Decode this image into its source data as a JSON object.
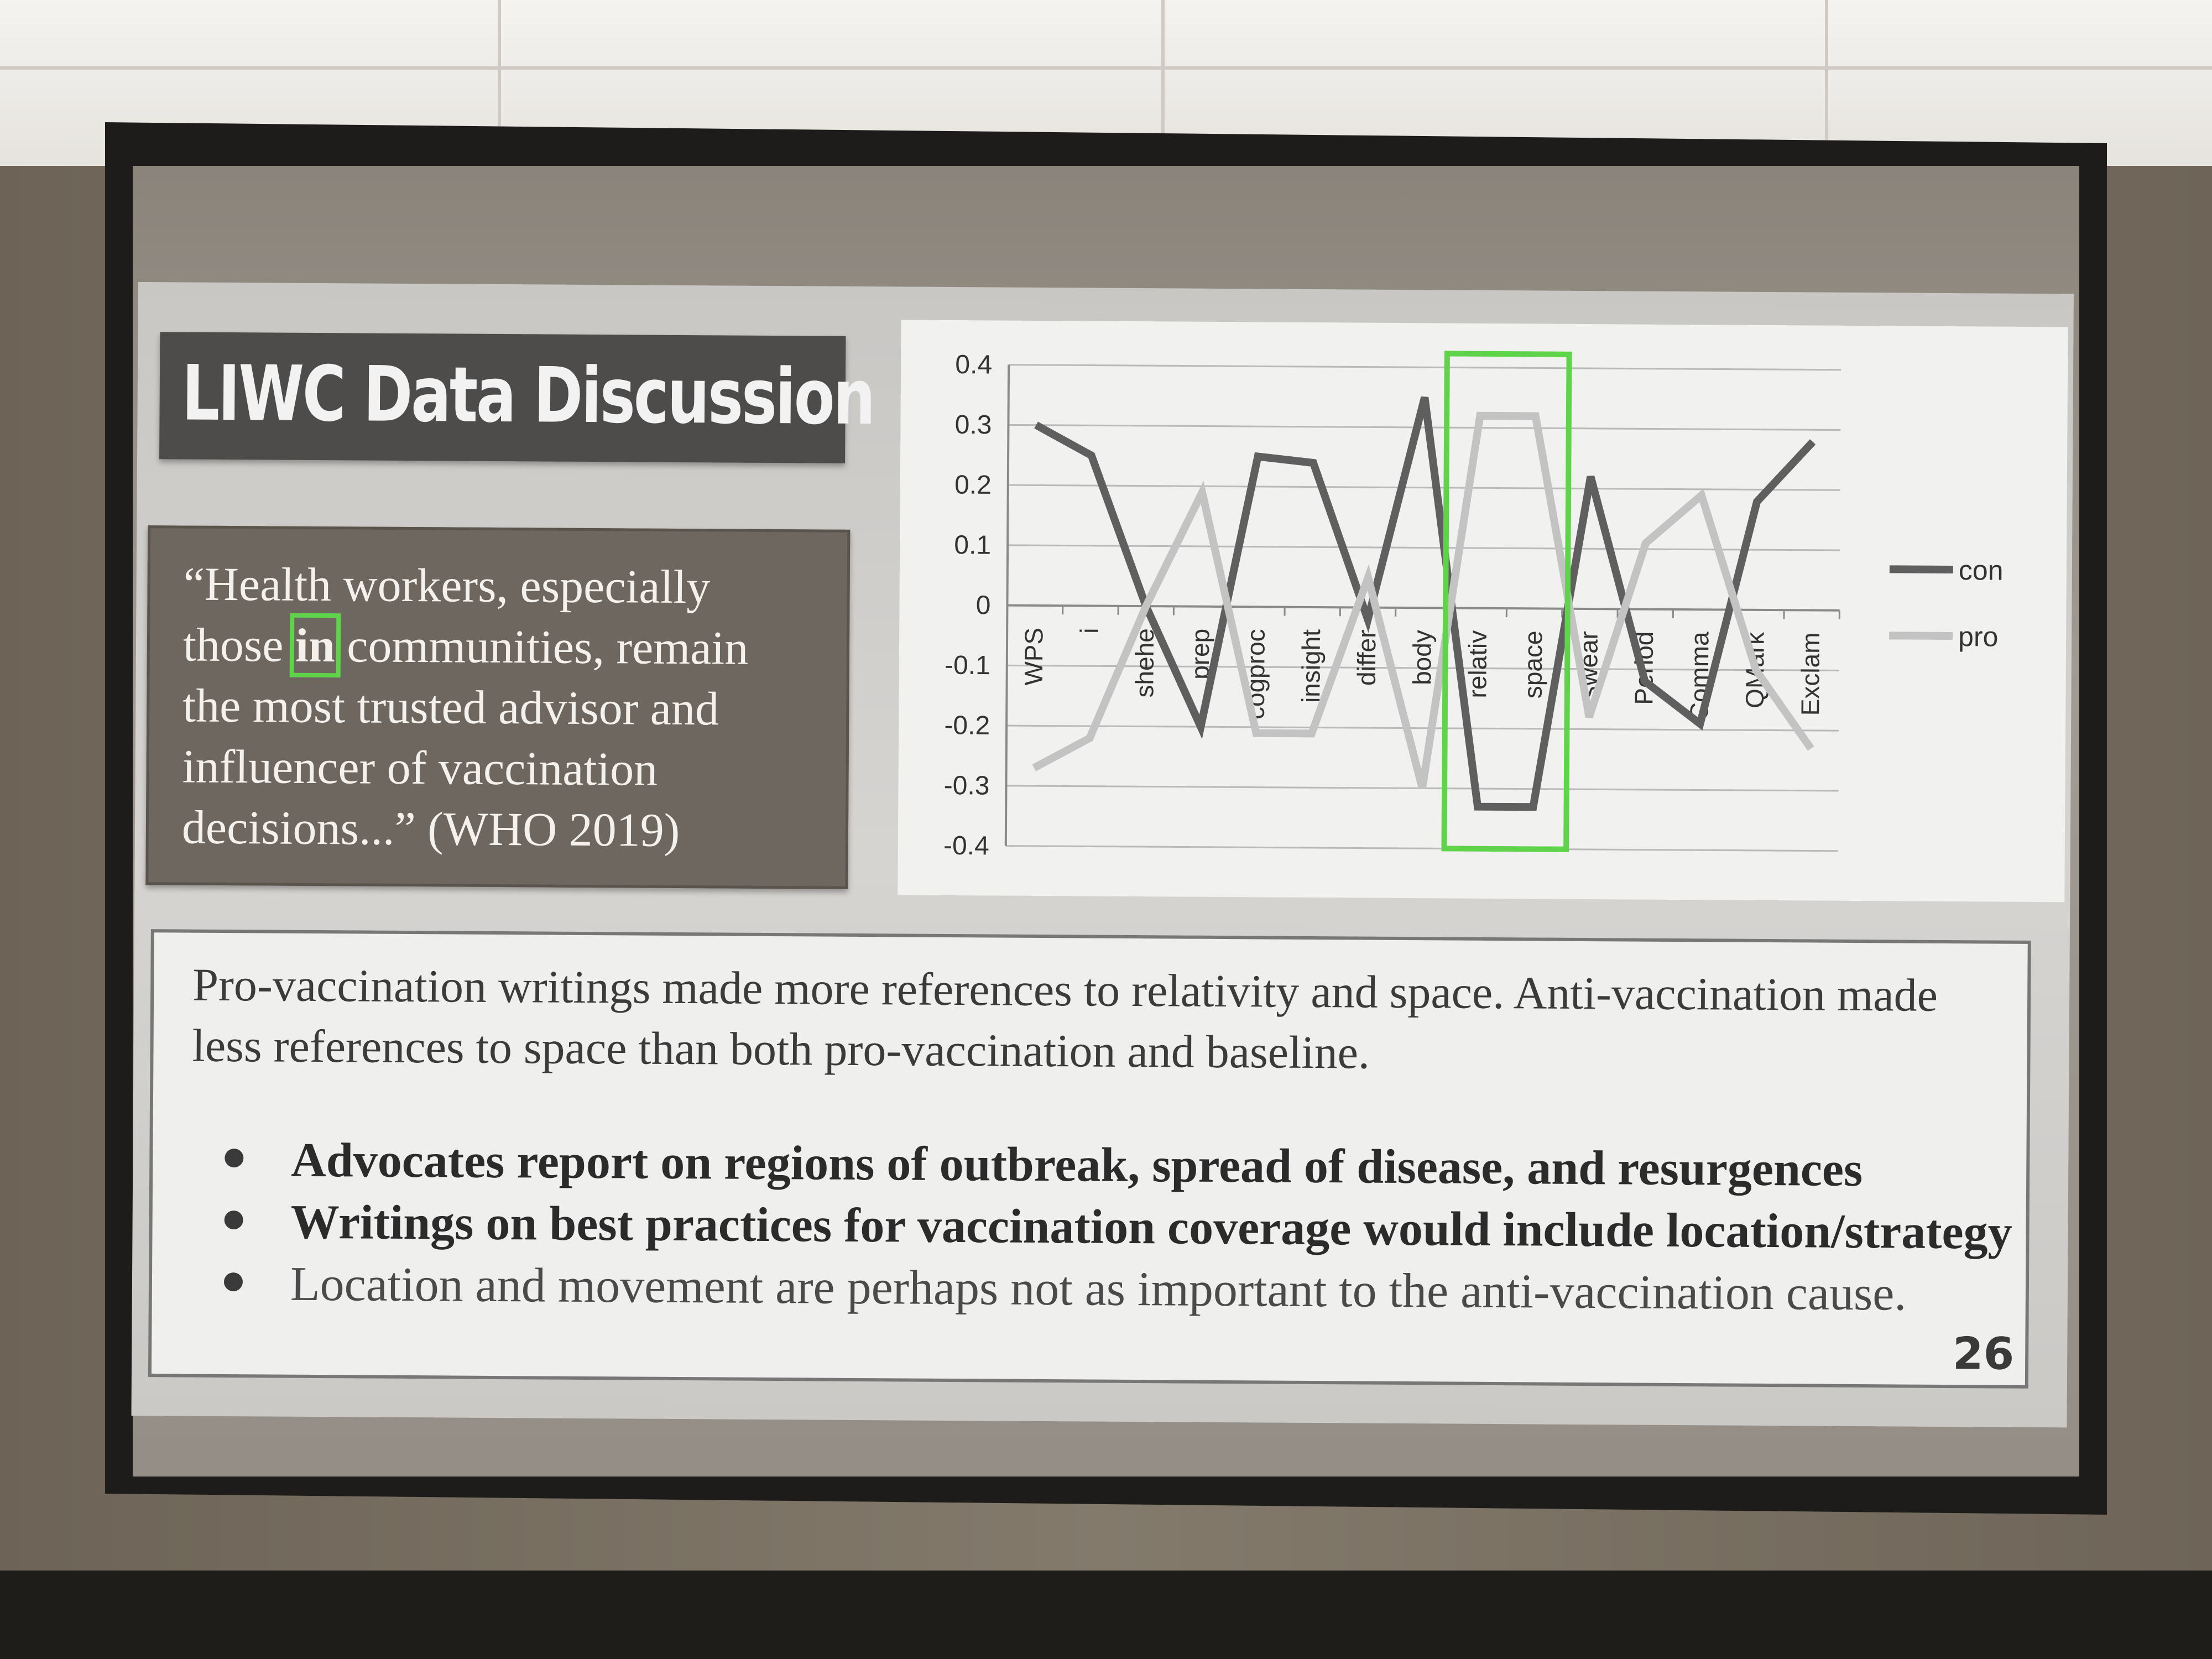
{
  "slide": {
    "title": "LIWC Data Discussion",
    "quote": {
      "line1": "“Health workers, especially",
      "line2_before": "those ",
      "line2_highlight": "in",
      "line2_after": " communities, remain",
      "line3": "the most trusted advisor and",
      "line4": "influencer of vaccination",
      "line5": "decisions...” (WHO 2019)"
    },
    "paragraph": "Pro-vaccination writings made more references to relativity and space. Anti-vaccination made less references to space than both pro-vaccination and baseline.",
    "bullets": [
      "Advocates report on regions of outbreak, spread of disease, and resurgences",
      "Writings on best practices for vaccination coverage would include location/strategy",
      "Location and movement are perhaps not as important to the anti-vaccination cause."
    ],
    "page_number": "26"
  },
  "chart_data": {
    "type": "line",
    "categories": [
      "WPS",
      "i",
      "shehe",
      "prep",
      "cogproc",
      "insight",
      "differ",
      "body",
      "relativ",
      "space",
      "swear",
      "Period",
      "Comma",
      "QMark",
      "Exclam"
    ],
    "series": [
      {
        "name": "con",
        "color": "#5f5f5f",
        "values": [
          0.3,
          0.25,
          0.0,
          -0.2,
          0.25,
          0.24,
          -0.02,
          0.35,
          -0.33,
          -0.33,
          0.22,
          -0.12,
          -0.19,
          0.18,
          0.28
        ]
      },
      {
        "name": "pro",
        "color": "#c3c3c3",
        "values": [
          -0.27,
          -0.22,
          0.0,
          0.19,
          -0.21,
          -0.21,
          0.05,
          -0.3,
          0.32,
          0.32,
          -0.18,
          0.11,
          0.19,
          -0.1,
          -0.23
        ]
      }
    ],
    "yticks": [
      "0.4",
      "0.3",
      "0.2",
      "0.1",
      "0",
      "-0.1",
      "-0.2",
      "-0.3",
      "-0.4"
    ],
    "ylim": [
      -0.4,
      0.4
    ],
    "highlight_categories": [
      "relativ",
      "space"
    ],
    "highlight_color": "#5fd34a",
    "grid": true,
    "legend": "right"
  }
}
